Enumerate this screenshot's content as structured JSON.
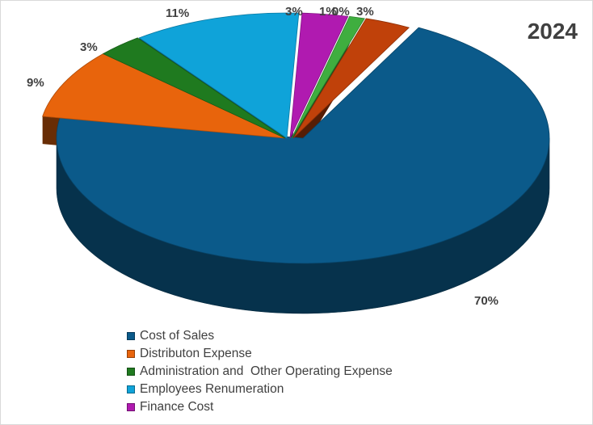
{
  "chart_data": {
    "type": "pie",
    "title": "2024",
    "categories": [
      "Cost of Sales",
      "Distributon Expense",
      "Administration and  Other Operating Expense",
      "Employees Renumeration",
      "Finance Cost",
      "",
      "",
      ""
    ],
    "values": [
      70,
      9,
      3,
      11,
      3,
      1,
      0,
      3
    ],
    "data_labels": [
      "70%",
      "9%",
      "3%",
      "11%",
      "3%",
      "1%",
      "0%",
      "3%"
    ],
    "colors": [
      "#0b5a8a",
      "#e8640c",
      "#1f7a1f",
      "#0fa3d9",
      "#b01ab0",
      "#3fae3f",
      "#1a4d7a",
      "#c0410a"
    ],
    "legend_entries": [
      {
        "label": "Cost of Sales",
        "color": "#0b5a8a"
      },
      {
        "label": "Distributon Expense",
        "color": "#e8640c"
      },
      {
        "label": "Administration and  Other Operating Expense",
        "color": "#1f7a1f"
      },
      {
        "label": "Employees Renumeration",
        "color": "#0fa3d9"
      },
      {
        "label": "Finance Cost",
        "color": "#b01ab0"
      }
    ],
    "legend_position": "bottom",
    "exploded": true,
    "style_3d": true
  }
}
